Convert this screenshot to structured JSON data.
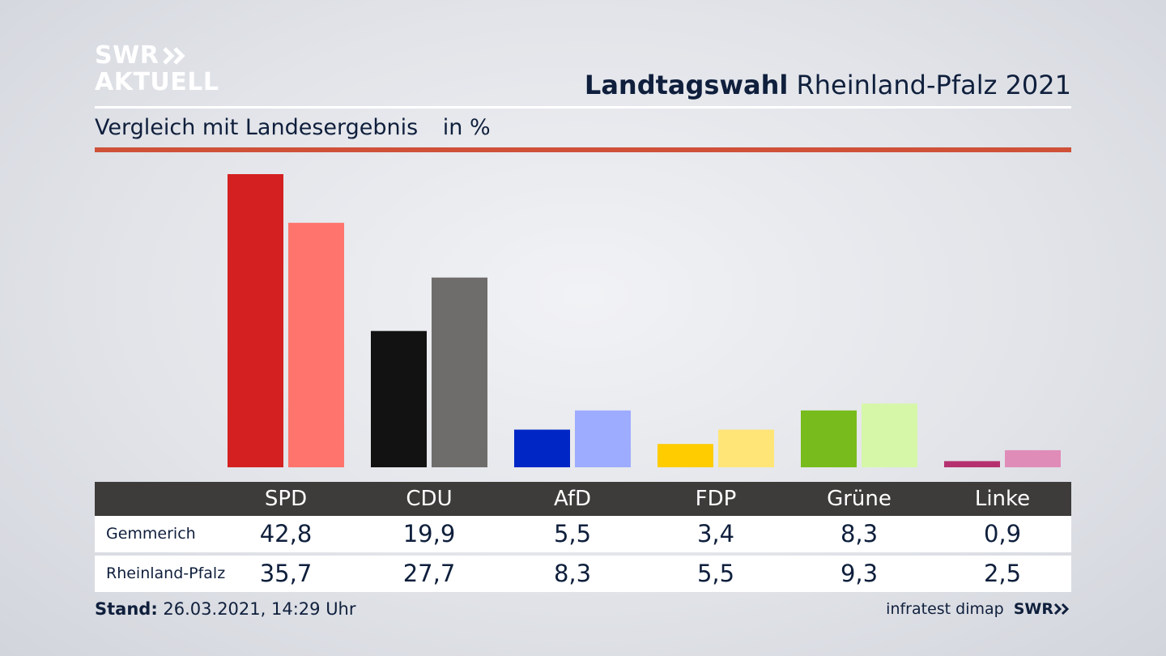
{
  "header": {
    "logo_line1": "SWR",
    "logo_line2": "AKTUELL",
    "title_bold": "Landtagswahl",
    "title_rest": "Rheinland-Pfalz 2021",
    "subtitle": "Vergleich mit Landesergebnis",
    "unit": "in %"
  },
  "chart_data": {
    "type": "bar",
    "categories": [
      "SPD",
      "CDU",
      "AfD",
      "FDP",
      "Grüne",
      "Linke"
    ],
    "series": [
      {
        "name": "Gemmerich",
        "values": [
          42.8,
          19.9,
          5.5,
          3.4,
          8.3,
          0.9
        ]
      },
      {
        "name": "Rheinland-Pfalz",
        "values": [
          35.7,
          27.7,
          8.3,
          5.5,
          9.3,
          2.5
        ]
      }
    ],
    "value_labels": [
      [
        "42,8",
        "19,9",
        "5,5",
        "3,4",
        "8,3",
        "0,9"
      ],
      [
        "35,7",
        "27,7",
        "8,3",
        "5,5",
        "9,3",
        "2,5"
      ]
    ],
    "ylim": [
      0,
      42.8
    ],
    "colors": {
      "primary": [
        "#d42020",
        "#121212",
        "#0026c6",
        "#ffcc00",
        "#78bb1d",
        "#b5306f"
      ],
      "secondary": [
        "#ff756d",
        "#6f6d6b",
        "#9dacff",
        "#ffe577",
        "#d6f7a8",
        "#e08cb8"
      ]
    },
    "grid": false,
    "legend": "table-below"
  },
  "footer": {
    "stand_label": "Stand:",
    "stand_value": "26.03.2021, 14:29 Uhr",
    "source": "infratest dimap",
    "source_logo": "SWR"
  },
  "icons": {
    "logo_chevrons": "double-chevron-right-icon"
  },
  "theme": {
    "accent_red": "#cf5138",
    "text_navy": "#0f1f3c",
    "table_header": "#3d3c3a"
  }
}
